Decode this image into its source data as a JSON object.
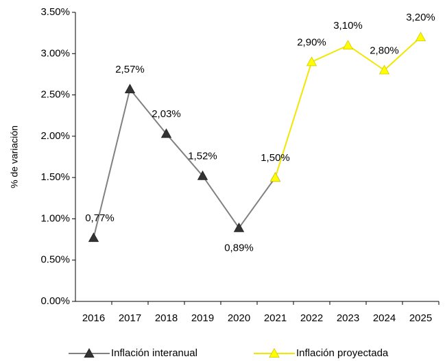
{
  "chart_data": {
    "type": "line",
    "ylabel": "% de variación",
    "categories": [
      "2016",
      "2017",
      "2018",
      "2019",
      "2020",
      "2021",
      "2022",
      "2023",
      "2024",
      "2025"
    ],
    "series": [
      {
        "name": "Inflación interanual",
        "color": "#808080",
        "marker_color": "#333333",
        "values": [
          0.77,
          2.57,
          2.03,
          1.52,
          0.89,
          1.5,
          null,
          null,
          null,
          null
        ],
        "value_labels": [
          "0,77%",
          "2,57%",
          "2,03%",
          "1,52%",
          "0,89%",
          null,
          null,
          null,
          null,
          null
        ]
      },
      {
        "name": "Inflación proyectada",
        "color": "#f2e600",
        "marker_color": "#ffff00",
        "values": [
          null,
          null,
          null,
          null,
          null,
          1.5,
          2.9,
          3.1,
          2.8,
          3.2
        ],
        "value_labels": [
          null,
          null,
          null,
          null,
          null,
          "1,50%",
          "2,90%",
          "3,10%",
          "2,80%",
          "3,20%"
        ]
      }
    ],
    "ylim": [
      0,
      3.5
    ],
    "yticks": [
      {
        "value": 0,
        "label": "0.00%"
      },
      {
        "value": 0.5,
        "label": "0.50%"
      },
      {
        "value": 1,
        "label": "1.00%"
      },
      {
        "value": 1.5,
        "label": "1.50%"
      },
      {
        "value": 2,
        "label": "2.00%"
      },
      {
        "value": 2.5,
        "label": "2.50%"
      },
      {
        "value": 3,
        "label": "3.00%"
      },
      {
        "value": 3.5,
        "label": "3.50%"
      }
    ],
    "grid": false,
    "legend": "bottom"
  }
}
